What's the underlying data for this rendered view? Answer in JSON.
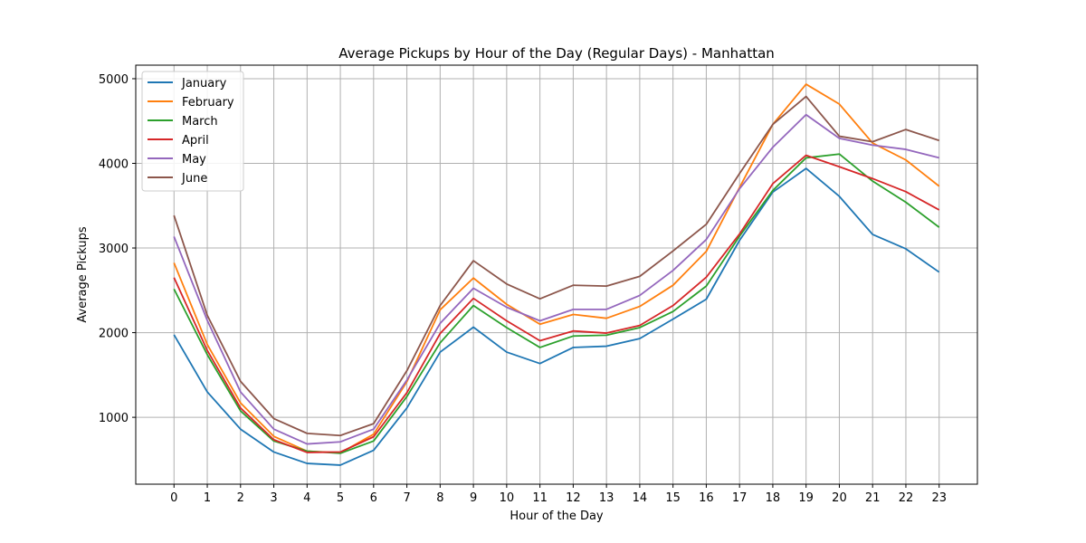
{
  "chart_data": {
    "type": "line",
    "title": "Average Pickups by Hour of the Day (Regular Days) - Manhattan",
    "xlabel": "Hour of the Day",
    "ylabel": "Average Pickups",
    "x": [
      0,
      1,
      2,
      3,
      4,
      5,
      6,
      7,
      8,
      9,
      10,
      11,
      12,
      13,
      14,
      15,
      16,
      17,
      18,
      19,
      20,
      21,
      22,
      23
    ],
    "x_ticks": [
      0,
      1,
      2,
      3,
      4,
      5,
      6,
      7,
      8,
      9,
      10,
      11,
      12,
      13,
      14,
      15,
      16,
      17,
      18,
      19,
      20,
      21,
      22,
      23
    ],
    "y_ticks": [
      1000,
      2000,
      3000,
      4000,
      5000
    ],
    "xlim": [
      -1.15,
      24.15
    ],
    "ylim": [
      210,
      5160
    ],
    "grid": true,
    "legend_position": "top-left",
    "series": [
      {
        "name": "January",
        "color": "#1f77b4",
        "values": [
          1975,
          1300,
          860,
          590,
          455,
          435,
          610,
          1110,
          1770,
          2065,
          1770,
          1635,
          1825,
          1840,
          1930,
          2160,
          2395,
          3090,
          3660,
          3940,
          3610,
          3160,
          2990,
          2715
        ]
      },
      {
        "name": "February",
        "color": "#ff7f0e",
        "values": [
          2825,
          1860,
          1170,
          775,
          600,
          580,
          800,
          1420,
          2270,
          2645,
          2335,
          2100,
          2215,
          2170,
          2310,
          2560,
          2960,
          3715,
          4460,
          4935,
          4700,
          4240,
          4040,
          3730
        ]
      },
      {
        "name": "March",
        "color": "#2ca02c",
        "values": [
          2515,
          1740,
          1075,
          720,
          600,
          575,
          720,
          1245,
          1880,
          2320,
          2060,
          1825,
          1960,
          1970,
          2060,
          2250,
          2550,
          3140,
          3680,
          4065,
          4110,
          3790,
          3540,
          3245
        ]
      },
      {
        "name": "April",
        "color": "#d62728",
        "values": [
          2650,
          1790,
          1110,
          735,
          585,
          590,
          770,
          1290,
          1990,
          2405,
          2140,
          1905,
          2020,
          1995,
          2085,
          2320,
          2655,
          3165,
          3760,
          4095,
          3960,
          3820,
          3665,
          3450
        ]
      },
      {
        "name": "May",
        "color": "#9467bd",
        "values": [
          3135,
          2145,
          1300,
          860,
          685,
          710,
          860,
          1440,
          2110,
          2525,
          2300,
          2140,
          2275,
          2275,
          2440,
          2735,
          3100,
          3700,
          4190,
          4575,
          4295,
          4215,
          4165,
          4065
        ]
      },
      {
        "name": "June",
        "color": "#8c564b",
        "values": [
          3385,
          2205,
          1425,
          985,
          810,
          785,
          925,
          1550,
          2320,
          2850,
          2575,
          2400,
          2560,
          2550,
          2665,
          2965,
          3280,
          3880,
          4460,
          4790,
          4320,
          4255,
          4400,
          4270
        ]
      }
    ]
  }
}
